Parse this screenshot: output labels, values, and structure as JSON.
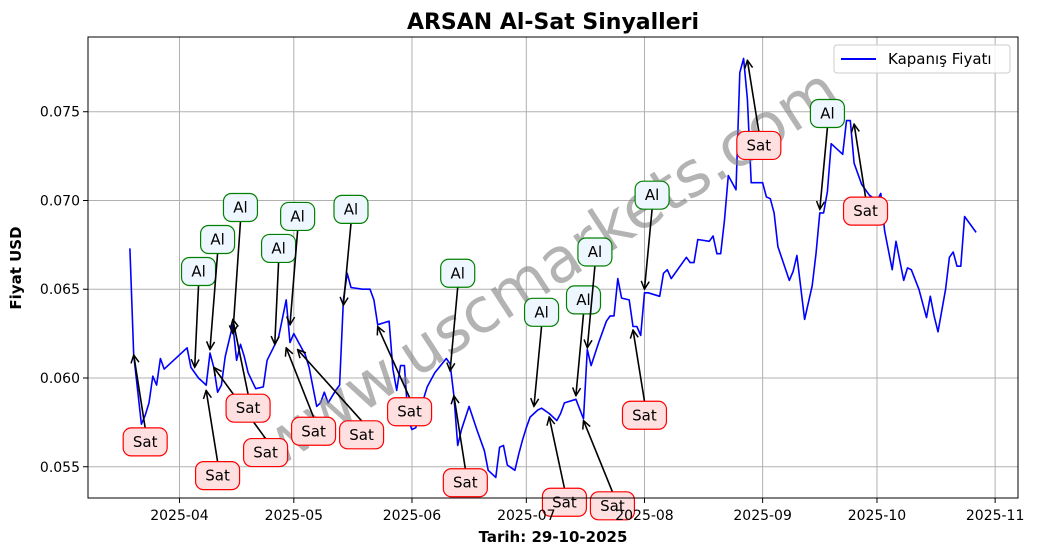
{
  "chart_data": {
    "type": "line",
    "title": "ARSAN Al-Sat Sinyalleri",
    "xlabel": "Tarih: 29-10-2025",
    "ylabel": "Fiyat USD",
    "xlim": [
      "2025-03-08",
      "2025-11-07"
    ],
    "ylim": [
      0.05324,
      0.07921
    ],
    "grid": true,
    "legend_placement": "top-right",
    "watermark": "www.uscmarkets.com",
    "x_ticks": [
      {
        "date": "2025-04-01",
        "label": "2025-04"
      },
      {
        "date": "2025-05-01",
        "label": "2025-05"
      },
      {
        "date": "2025-06-01",
        "label": "2025-06"
      },
      {
        "date": "2025-07-01",
        "label": "2025-07"
      },
      {
        "date": "2025-08-01",
        "label": "2025-08"
      },
      {
        "date": "2025-09-01",
        "label": "2025-09"
      },
      {
        "date": "2025-10-01",
        "label": "2025-10"
      },
      {
        "date": "2025-11-01",
        "label": "2025-11"
      }
    ],
    "y_ticks": [
      {
        "value": 0.055,
        "label": "0.055"
      },
      {
        "value": 0.06,
        "label": "0.060"
      },
      {
        "value": 0.065,
        "label": "0.065"
      },
      {
        "value": 0.07,
        "label": "0.070"
      },
      {
        "value": 0.075,
        "label": "0.075"
      }
    ],
    "series": [
      {
        "name": "Kapanış Fiyatı",
        "color": "#0000ff",
        "x": [
          "2025-03-19",
          "2025-03-20",
          "2025-03-22",
          "2025-03-23",
          "2025-03-24",
          "2025-03-25",
          "2025-03-26",
          "2025-03-27",
          "2025-03-28",
          "2025-04-03",
          "2025-04-04",
          "2025-04-06",
          "2025-04-08",
          "2025-04-09",
          "2025-04-10",
          "2025-04-11",
          "2025-04-12",
          "2025-04-13",
          "2025-04-15",
          "2025-04-16",
          "2025-04-17",
          "2025-04-18",
          "2025-04-19",
          "2025-04-21",
          "2025-04-23",
          "2025-04-24",
          "2025-04-27",
          "2025-04-29",
          "2025-04-30",
          "2025-05-01",
          "2025-05-04",
          "2025-05-05",
          "2025-05-07",
          "2025-05-08",
          "2025-05-09",
          "2025-05-10",
          "2025-05-12",
          "2025-05-13",
          "2025-05-14",
          "2025-05-15",
          "2025-05-16",
          "2025-05-19",
          "2025-05-21",
          "2025-05-22",
          "2025-05-23",
          "2025-05-26",
          "2025-05-27",
          "2025-05-28",
          "2025-05-29",
          "2025-05-30",
          "2025-05-31",
          "2025-06-01",
          "2025-06-02",
          "2025-06-03",
          "2025-06-04",
          "2025-06-05",
          "2025-06-07",
          "2025-06-10",
          "2025-06-11",
          "2025-06-12",
          "2025-06-13",
          "2025-06-14",
          "2025-06-16",
          "2025-06-18",
          "2025-06-20",
          "2025-06-21",
          "2025-06-23",
          "2025-06-24",
          "2025-06-25",
          "2025-06-26",
          "2025-06-28",
          "2025-06-29",
          "2025-06-30",
          "2025-07-01",
          "2025-07-02",
          "2025-07-04",
          "2025-07-05",
          "2025-07-07",
          "2025-07-09",
          "2025-07-10",
          "2025-07-11",
          "2025-07-14",
          "2025-07-16",
          "2025-07-17",
          "2025-07-18",
          "2025-07-20",
          "2025-07-22",
          "2025-07-23",
          "2025-07-24",
          "2025-07-25",
          "2025-07-26",
          "2025-07-28",
          "2025-07-29",
          "2025-07-30",
          "2025-07-31",
          "2025-08-01",
          "2025-08-02",
          "2025-08-05",
          "2025-08-06",
          "2025-08-07",
          "2025-08-08",
          "2025-08-12",
          "2025-08-13",
          "2025-08-14",
          "2025-08-15",
          "2025-08-18",
          "2025-08-19",
          "2025-08-20",
          "2025-08-21",
          "2025-08-22",
          "2025-08-23",
          "2025-08-25",
          "2025-08-26",
          "2025-08-27",
          "2025-08-28",
          "2025-08-29",
          "2025-09-01",
          "2025-09-02",
          "2025-09-03",
          "2025-09-04",
          "2025-09-05",
          "2025-09-08",
          "2025-09-09",
          "2025-09-10",
          "2025-09-12",
          "2025-09-14",
          "2025-09-15",
          "2025-09-16",
          "2025-09-17",
          "2025-09-18",
          "2025-09-19",
          "2025-09-22",
          "2025-09-23",
          "2025-09-24",
          "2025-09-25",
          "2025-09-27",
          "2025-09-29",
          "2025-10-01",
          "2025-10-02",
          "2025-10-03",
          "2025-10-05",
          "2025-10-06",
          "2025-10-08",
          "2025-10-09",
          "2025-10-10",
          "2025-10-12",
          "2025-10-14",
          "2025-10-15",
          "2025-10-16",
          "2025-10-17",
          "2025-10-19",
          "2025-10-20",
          "2025-10-21",
          "2025-10-22",
          "2025-10-23",
          "2025-10-24",
          "2025-10-27"
        ],
        "values": [
          0.0673,
          0.0613,
          0.0574,
          0.0579,
          0.0586,
          0.0601,
          0.0596,
          0.0611,
          0.0605,
          0.0617,
          0.0606,
          0.06,
          0.0596,
          0.0614,
          0.0606,
          0.0592,
          0.0596,
          0.0612,
          0.063,
          0.061,
          0.0619,
          0.0612,
          0.0603,
          0.0594,
          0.0595,
          0.061,
          0.0623,
          0.0644,
          0.062,
          0.0625,
          0.0613,
          0.0606,
          0.0584,
          0.0586,
          0.0592,
          0.0586,
          0.0593,
          0.0596,
          0.0644,
          0.0659,
          0.0651,
          0.065,
          0.065,
          0.0644,
          0.063,
          0.0632,
          0.0605,
          0.0593,
          0.0607,
          0.0607,
          0.0576,
          0.0571,
          0.0572,
          0.0581,
          0.0588,
          0.0595,
          0.0603,
          0.0611,
          0.0608,
          0.059,
          0.0562,
          0.0571,
          0.0584,
          0.0571,
          0.0559,
          0.0548,
          0.0544,
          0.0561,
          0.0562,
          0.0551,
          0.0548,
          0.0557,
          0.0565,
          0.0572,
          0.0578,
          0.0582,
          0.0583,
          0.058,
          0.0576,
          0.058,
          0.0586,
          0.0588,
          0.0577,
          0.0616,
          0.0607,
          0.062,
          0.0632,
          0.0635,
          0.0635,
          0.0656,
          0.0645,
          0.0644,
          0.0629,
          0.0629,
          0.0624,
          0.0648,
          0.0648,
          0.0646,
          0.0659,
          0.0661,
          0.0656,
          0.0668,
          0.0665,
          0.0665,
          0.0678,
          0.0677,
          0.068,
          0.067,
          0.067,
          0.0689,
          0.0714,
          0.0706,
          0.0772,
          0.078,
          0.0757,
          0.071,
          0.071,
          0.0702,
          0.0701,
          0.0693,
          0.0674,
          0.0655,
          0.066,
          0.0669,
          0.0633,
          0.0652,
          0.067,
          0.0693,
          0.0693,
          0.0705,
          0.0732,
          0.0726,
          0.0745,
          0.0745,
          0.0721,
          0.0709,
          0.0703,
          0.07,
          0.0704,
          0.0683,
          0.0661,
          0.0677,
          0.0655,
          0.0662,
          0.0661,
          0.065,
          0.0634,
          0.0646,
          0.0635,
          0.0626,
          0.065,
          0.0668,
          0.0671,
          0.0663,
          0.0663,
          0.0691,
          0.0682
        ]
      }
    ],
    "annotations": [
      {
        "type": "sell",
        "text": "Sat",
        "date": "2025-03-20",
        "value": 0.0613,
        "text_date": "2025-03-23",
        "text_value": 0.0564
      },
      {
        "type": "buy",
        "text": "Al",
        "date": "2025-04-05",
        "value": 0.0606,
        "text_date": "2025-04-06",
        "text_value": 0.066
      },
      {
        "type": "buy",
        "text": "Al",
        "date": "2025-04-09",
        "value": 0.0616,
        "text_date": "2025-04-11",
        "text_value": 0.067
      },
      {
        "type": "buy",
        "text": "Al",
        "date": "2025-04-15",
        "value": 0.0625,
        "text_date": "2025-04-17",
        "text_value": 0.0681
      },
      {
        "type": "sell",
        "text": "Sat",
        "date": "2025-04-08",
        "value": 0.0593,
        "text_date": "2025-04-11",
        "text_value": 0.0545
      },
      {
        "type": "sell",
        "text": "Sat",
        "date": "2025-04-10",
        "value": 0.0606,
        "text_date": "2025-04-13",
        "text_value": 0.0558
      },
      {
        "type": "sell",
        "text": "Sat",
        "date": "2025-04-15",
        "value": 0.0633,
        "text_date": "2025-04-19",
        "text_value": 0.0583
      },
      {
        "type": "buy",
        "text": "Al",
        "date": "2025-04-26",
        "value": 0.0619,
        "text_date": "2025-04-27",
        "text_value": 0.0673
      },
      {
        "type": "buy",
        "text": "Al",
        "date": "2025-04-30",
        "value": 0.063,
        "text_date": "2025-05-02",
        "text_value": 0.0683
      },
      {
        "type": "sell",
        "text": "Sat",
        "date": "2025-04-29",
        "value": 0.0617,
        "text_date": "2025-05-02",
        "text_value": 0.057
      },
      {
        "type": "sell",
        "text": "Sat",
        "date": "2025-05-02",
        "value": 0.0616,
        "text_date": "2025-05-05",
        "text_value": 0.0568
      },
      {
        "type": "buy",
        "text": "Al",
        "date": "2025-05-14",
        "value": 0.0641,
        "text_date": "2025-05-16",
        "text_value": 0.0695
      },
      {
        "type": "sell",
        "text": "Sat",
        "date": "2025-05-23",
        "value": 0.0629,
        "text_date": "2025-05-26",
        "text_value": 0.0581
      },
      {
        "type": "buy",
        "text": "Al",
        "date": "2025-06-11",
        "value": 0.0604,
        "text_date": "2025-06-13",
        "text_value": 0.0659
      },
      {
        "type": "sell",
        "text": "Sat",
        "date": "2025-06-12",
        "value": 0.059,
        "text_date": "2025-06-15",
        "text_value": 0.0541
      },
      {
        "type": "buy",
        "text": "Al",
        "date": "2025-07-03",
        "value": 0.0584,
        "text_date": "2025-07-05",
        "text_value": 0.0637
      },
      {
        "type": "sell",
        "text": "Sat",
        "date": "2025-07-07",
        "value": 0.0578,
        "text_date": "2025-07-11",
        "text_value": 0.053
      },
      {
        "type": "buy",
        "text": "Al",
        "date": "2025-07-14",
        "value": 0.059,
        "text_date": "2025-07-16",
        "text_value": 0.0644
      },
      {
        "type": "sell",
        "text": "Sat",
        "date": "2025-07-16",
        "value": 0.0576,
        "text_date": "2025-07-19",
        "text_value": 0.0528
      },
      {
        "type": "buy",
        "text": "Al",
        "date": "2025-07-17",
        "value": 0.0617,
        "text_date": "2025-07-19",
        "text_value": 0.0671
      },
      {
        "type": "sell",
        "text": "Sat",
        "date": "2025-07-29",
        "value": 0.0627,
        "text_date": "2025-08-01",
        "text_value": 0.0579
      },
      {
        "type": "buy",
        "text": "Al",
        "date": "2025-08-01",
        "value": 0.065,
        "text_date": "2025-08-03",
        "text_value": 0.0703
      },
      {
        "type": "sell",
        "text": "Sat",
        "date": "2025-08-28",
        "value": 0.0779,
        "text_date": "2025-08-31",
        "text_value": 0.0731
      },
      {
        "type": "buy",
        "text": "Al",
        "date": "2025-09-16",
        "value": 0.0695,
        "text_date": "2025-09-18",
        "text_value": 0.0749
      },
      {
        "type": "sell",
        "text": "Sat",
        "date": "2025-09-25",
        "value": 0.0743,
        "text_date": "2025-09-28",
        "text_value": 0.0694
      }
    ],
    "colors": {
      "buy_edge": "#008000",
      "buy_fill": "#eef6ff",
      "sell_edge": "#ff0000",
      "sell_fill": "#ffe0e0",
      "grid": "#b0b0b0",
      "watermark": "#808080"
    }
  }
}
